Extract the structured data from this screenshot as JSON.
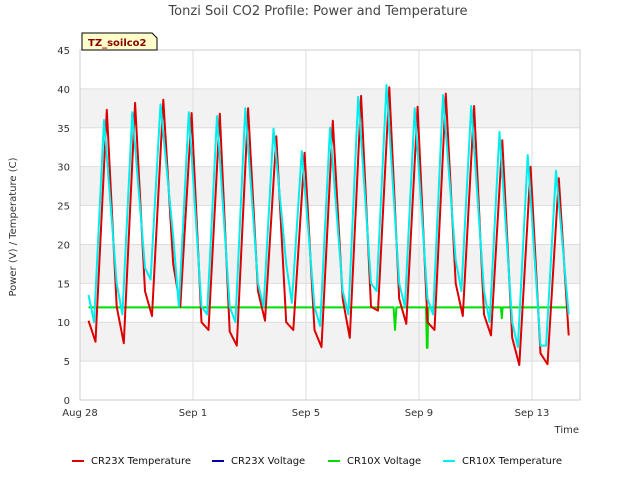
{
  "chart_data": {
    "type": "line",
    "title": "Tonzi Soil CO2 Profile: Power and Temperature",
    "badge": "TZ_soilco2",
    "xlabel": "Time",
    "ylabel": "Power (V) / Temperature (C)",
    "xlim": [
      0,
      17.7
    ],
    "ylim": [
      0,
      45
    ],
    "x_ticks": [
      {
        "value": 0,
        "label": "Aug 28"
      },
      {
        "value": 4,
        "label": "Sep 1"
      },
      {
        "value": 8,
        "label": "Sep 5"
      },
      {
        "value": 12,
        "label": "Sep 9"
      },
      {
        "value": 16,
        "label": "Sep 13"
      }
    ],
    "y_ticks": [
      0,
      5,
      10,
      15,
      20,
      25,
      30,
      35,
      40,
      45
    ],
    "grid": true,
    "background_bands": true,
    "legend_position": "bottom",
    "colors": {
      "CR23X Temperature": "#dd0000",
      "CR23X Voltage": "#0000aa",
      "CR10X Voltage": "#00dd00",
      "CR10X Temperature": "#00eeee",
      "band": "#f2f2f2",
      "badge_fill": "#ffffcc"
    },
    "series": [
      {
        "name": "CR23X Temperature",
        "x": [
          0.3,
          0.55,
          0.95,
          1.3,
          1.55,
          1.95,
          2.3,
          2.55,
          2.95,
          3.3,
          3.55,
          3.95,
          4.3,
          4.55,
          4.95,
          5.3,
          5.55,
          5.95,
          6.3,
          6.55,
          6.95,
          7.3,
          7.55,
          7.95,
          8.3,
          8.55,
          8.95,
          9.3,
          9.55,
          9.95,
          10.3,
          10.55,
          10.95,
          11.3,
          11.55,
          11.95,
          12.3,
          12.55,
          12.95,
          13.3,
          13.55,
          13.95,
          14.3,
          14.55,
          14.95,
          15.3,
          15.55,
          15.95,
          16.3,
          16.55,
          16.95,
          17.3
        ],
        "y": [
          10.2,
          7.5,
          37.3,
          12,
          7.3,
          38.2,
          14,
          10.8,
          38.6,
          17.5,
          12,
          36.9,
          10,
          9,
          36.8,
          8.8,
          7,
          37.5,
          14,
          10.2,
          33.9,
          10,
          9,
          31.8,
          9,
          6.8,
          35.9,
          13,
          8,
          39.1,
          12,
          11.5,
          40.2,
          13,
          9.8,
          37.7,
          10,
          9,
          39.4,
          15,
          10.8,
          37.8,
          11,
          8.3,
          33.4,
          8,
          4.5,
          30,
          6,
          4.6,
          28.5,
          8.3
        ]
      },
      {
        "name": "CR23X Voltage",
        "x": [],
        "y": []
      },
      {
        "name": "CR10X Voltage",
        "x": [
          0.3,
          11.1,
          11.15,
          11.2,
          11.25,
          12.25,
          12.28,
          12.3,
          12.33,
          14.9,
          14.93,
          14.96,
          17.3
        ],
        "y": [
          11.9,
          11.9,
          9,
          11.9,
          11.9,
          11.9,
          6.7,
          6.7,
          11.9,
          11.9,
          10.5,
          11.9,
          11.9
        ]
      },
      {
        "name": "CR10X Temperature",
        "x": [
          0.3,
          0.5,
          0.85,
          1.3,
          1.5,
          1.85,
          2.3,
          2.5,
          2.85,
          3.3,
          3.5,
          3.85,
          4.3,
          4.5,
          4.85,
          5.3,
          5.5,
          5.85,
          6.3,
          6.5,
          6.85,
          7.3,
          7.5,
          7.85,
          8.3,
          8.5,
          8.85,
          9.3,
          9.5,
          9.85,
          10.3,
          10.5,
          10.85,
          11.3,
          11.5,
          11.85,
          12.3,
          12.5,
          12.85,
          13.3,
          13.5,
          13.85,
          14.3,
          14.5,
          14.85,
          15.3,
          15.5,
          15.85,
          16.3,
          16.5,
          16.85,
          17.3
        ],
        "y": [
          13.5,
          10,
          36,
          15,
          11,
          37,
          17,
          15.5,
          38,
          21,
          12,
          37,
          12,
          11,
          36.5,
          12,
          10,
          37.5,
          15,
          12,
          34.9,
          17.5,
          12.5,
          32,
          12,
          9.5,
          35,
          14,
          11,
          39,
          15,
          14,
          40.5,
          15,
          12,
          37.5,
          13,
          11,
          39.2,
          18,
          14,
          37.8,
          14,
          10,
          34.5,
          10,
          6.8,
          31.5,
          7,
          7,
          29.5,
          11
        ]
      }
    ]
  }
}
